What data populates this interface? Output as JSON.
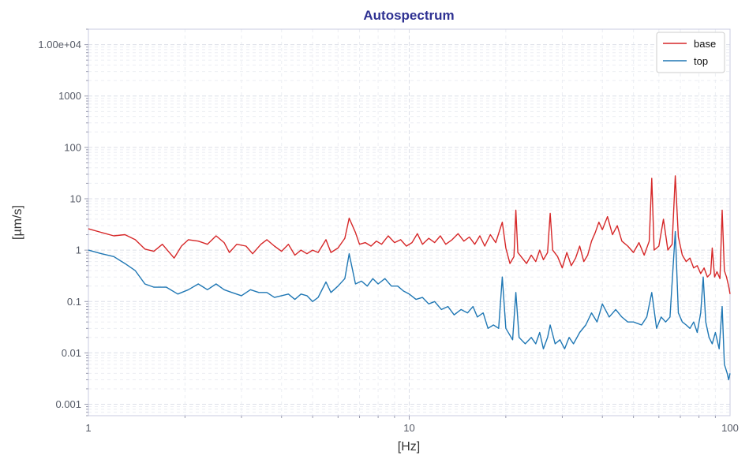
{
  "chart_data": {
    "type": "line",
    "title": "Autospectrum",
    "xlabel": "[Hz]",
    "ylabel": "[µm/s]",
    "xscale": "log",
    "yscale": "log",
    "xlim": [
      1,
      100
    ],
    "ylim": [
      0.0006,
      20000
    ],
    "grid": true,
    "legend_position": "top-right",
    "x_ticks": [
      {
        "value": 1,
        "label": "1"
      },
      {
        "value": 10,
        "label": "10"
      },
      {
        "value": 100,
        "label": "100"
      }
    ],
    "y_ticks": [
      {
        "value": 0.001,
        "label": "0.001"
      },
      {
        "value": 0.01,
        "label": "0.01"
      },
      {
        "value": 0.1,
        "label": "0.1"
      },
      {
        "value": 1,
        "label": "1"
      },
      {
        "value": 10,
        "label": "10"
      },
      {
        "value": 100,
        "label": "100"
      },
      {
        "value": 1000,
        "label": "1000"
      },
      {
        "value": 10000,
        "label": "1.00e+04"
      }
    ],
    "colors": {
      "title": "#2e3192",
      "base": "#d62728",
      "top": "#1f77b4"
    },
    "series": [
      {
        "name": "base",
        "color": "#d62728",
        "points": [
          [
            1.0,
            2.6
          ],
          [
            1.1,
            2.2
          ],
          [
            1.2,
            1.9
          ],
          [
            1.3,
            2.0
          ],
          [
            1.4,
            1.6
          ],
          [
            1.5,
            1.05
          ],
          [
            1.6,
            0.95
          ],
          [
            1.7,
            1.3
          ],
          [
            1.85,
            0.7
          ],
          [
            1.95,
            1.2
          ],
          [
            2.05,
            1.6
          ],
          [
            2.2,
            1.5
          ],
          [
            2.35,
            1.3
          ],
          [
            2.5,
            1.9
          ],
          [
            2.65,
            1.4
          ],
          [
            2.75,
            0.9
          ],
          [
            2.9,
            1.3
          ],
          [
            3.1,
            1.2
          ],
          [
            3.25,
            0.85
          ],
          [
            3.45,
            1.3
          ],
          [
            3.6,
            1.6
          ],
          [
            3.8,
            1.2
          ],
          [
            4.0,
            0.95
          ],
          [
            4.2,
            1.3
          ],
          [
            4.4,
            0.8
          ],
          [
            4.6,
            1.0
          ],
          [
            4.8,
            0.85
          ],
          [
            5.0,
            1.0
          ],
          [
            5.2,
            0.9
          ],
          [
            5.5,
            1.6
          ],
          [
            5.7,
            0.9
          ],
          [
            6.0,
            1.1
          ],
          [
            6.3,
            1.7
          ],
          [
            6.5,
            4.2
          ],
          [
            6.8,
            2.2
          ],
          [
            7.0,
            1.3
          ],
          [
            7.3,
            1.4
          ],
          [
            7.6,
            1.2
          ],
          [
            7.9,
            1.5
          ],
          [
            8.2,
            1.3
          ],
          [
            8.6,
            1.9
          ],
          [
            9.0,
            1.4
          ],
          [
            9.4,
            1.6
          ],
          [
            9.8,
            1.2
          ],
          [
            10.2,
            1.4
          ],
          [
            10.6,
            2.1
          ],
          [
            11.0,
            1.3
          ],
          [
            11.5,
            1.7
          ],
          [
            12.0,
            1.4
          ],
          [
            12.5,
            1.9
          ],
          [
            13.0,
            1.3
          ],
          [
            13.6,
            1.6
          ],
          [
            14.2,
            2.1
          ],
          [
            14.8,
            1.5
          ],
          [
            15.4,
            1.8
          ],
          [
            16.0,
            1.3
          ],
          [
            16.6,
            1.9
          ],
          [
            17.2,
            1.2
          ],
          [
            17.9,
            2.0
          ],
          [
            18.6,
            1.4
          ],
          [
            19.5,
            3.5
          ],
          [
            20.0,
            1.1
          ],
          [
            20.6,
            0.55
          ],
          [
            21.2,
            0.75
          ],
          [
            21.5,
            6.0
          ],
          [
            21.8,
            0.9
          ],
          [
            22.5,
            0.7
          ],
          [
            23.2,
            0.55
          ],
          [
            24.0,
            0.8
          ],
          [
            24.8,
            0.6
          ],
          [
            25.5,
            1.0
          ],
          [
            26.2,
            0.65
          ],
          [
            27.0,
            0.9
          ],
          [
            27.5,
            5.2
          ],
          [
            28.0,
            1.0
          ],
          [
            29.0,
            0.75
          ],
          [
            30.0,
            0.45
          ],
          [
            31.0,
            0.9
          ],
          [
            32.0,
            0.5
          ],
          [
            33.0,
            0.7
          ],
          [
            34.0,
            1.2
          ],
          [
            35.0,
            0.6
          ],
          [
            36.0,
            0.8
          ],
          [
            37.0,
            1.5
          ],
          [
            38.0,
            2.2
          ],
          [
            39.0,
            3.5
          ],
          [
            40.0,
            2.5
          ],
          [
            41.5,
            4.5
          ],
          [
            43.0,
            2.0
          ],
          [
            44.5,
            3.0
          ],
          [
            46.0,
            1.5
          ],
          [
            48.0,
            1.2
          ],
          [
            50.0,
            0.9
          ],
          [
            52.0,
            1.4
          ],
          [
            54.0,
            0.8
          ],
          [
            56.0,
            1.5
          ],
          [
            57.0,
            25.0
          ],
          [
            58.0,
            1.0
          ],
          [
            60.0,
            1.2
          ],
          [
            62.0,
            4.0
          ],
          [
            64.0,
            1.0
          ],
          [
            66.0,
            1.3
          ],
          [
            67.5,
            28.0
          ],
          [
            69.0,
            1.8
          ],
          [
            71.0,
            0.8
          ],
          [
            73.0,
            0.6
          ],
          [
            75.0,
            0.7
          ],
          [
            77.0,
            0.45
          ],
          [
            79.0,
            0.5
          ],
          [
            81.0,
            0.35
          ],
          [
            83.0,
            0.45
          ],
          [
            85.0,
            0.3
          ],
          [
            87.0,
            0.35
          ],
          [
            88.0,
            1.1
          ],
          [
            89.5,
            0.3
          ],
          [
            91.0,
            0.38
          ],
          [
            93.0,
            0.28
          ],
          [
            94.5,
            6.0
          ],
          [
            96.0,
            0.4
          ],
          [
            97.5,
            0.3
          ],
          [
            99.0,
            0.2
          ],
          [
            100.0,
            0.14
          ]
        ]
      },
      {
        "name": "top",
        "color": "#1f77b4",
        "points": [
          [
            1.0,
            1.0
          ],
          [
            1.1,
            0.85
          ],
          [
            1.2,
            0.75
          ],
          [
            1.3,
            0.55
          ],
          [
            1.4,
            0.4
          ],
          [
            1.5,
            0.22
          ],
          [
            1.6,
            0.19
          ],
          [
            1.75,
            0.19
          ],
          [
            1.9,
            0.14
          ],
          [
            2.05,
            0.17
          ],
          [
            2.2,
            0.22
          ],
          [
            2.35,
            0.17
          ],
          [
            2.5,
            0.22
          ],
          [
            2.65,
            0.17
          ],
          [
            2.8,
            0.15
          ],
          [
            3.0,
            0.13
          ],
          [
            3.2,
            0.17
          ],
          [
            3.4,
            0.15
          ],
          [
            3.6,
            0.15
          ],
          [
            3.8,
            0.12
          ],
          [
            4.0,
            0.13
          ],
          [
            4.2,
            0.14
          ],
          [
            4.4,
            0.11
          ],
          [
            4.6,
            0.14
          ],
          [
            4.8,
            0.13
          ],
          [
            5.0,
            0.1
          ],
          [
            5.2,
            0.12
          ],
          [
            5.5,
            0.24
          ],
          [
            5.7,
            0.15
          ],
          [
            6.0,
            0.2
          ],
          [
            6.3,
            0.28
          ],
          [
            6.5,
            0.85
          ],
          [
            6.8,
            0.22
          ],
          [
            7.1,
            0.25
          ],
          [
            7.4,
            0.2
          ],
          [
            7.7,
            0.28
          ],
          [
            8.0,
            0.22
          ],
          [
            8.4,
            0.28
          ],
          [
            8.8,
            0.2
          ],
          [
            9.2,
            0.2
          ],
          [
            9.6,
            0.16
          ],
          [
            10.0,
            0.14
          ],
          [
            10.5,
            0.11
          ],
          [
            11.0,
            0.12
          ],
          [
            11.5,
            0.09
          ],
          [
            12.0,
            0.1
          ],
          [
            12.6,
            0.07
          ],
          [
            13.2,
            0.08
          ],
          [
            13.8,
            0.055
          ],
          [
            14.5,
            0.07
          ],
          [
            15.2,
            0.06
          ],
          [
            15.8,
            0.08
          ],
          [
            16.3,
            0.05
          ],
          [
            17.0,
            0.06
          ],
          [
            17.6,
            0.03
          ],
          [
            18.3,
            0.035
          ],
          [
            19.0,
            0.03
          ],
          [
            19.5,
            0.3
          ],
          [
            20.0,
            0.03
          ],
          [
            21.0,
            0.018
          ],
          [
            21.5,
            0.15
          ],
          [
            22.0,
            0.02
          ],
          [
            23.0,
            0.015
          ],
          [
            24.0,
            0.02
          ],
          [
            24.8,
            0.015
          ],
          [
            25.5,
            0.025
          ],
          [
            26.2,
            0.012
          ],
          [
            27.0,
            0.02
          ],
          [
            27.5,
            0.035
          ],
          [
            28.5,
            0.015
          ],
          [
            29.5,
            0.018
          ],
          [
            30.5,
            0.012
          ],
          [
            31.5,
            0.02
          ],
          [
            32.5,
            0.015
          ],
          [
            34.0,
            0.025
          ],
          [
            35.5,
            0.035
          ],
          [
            37.0,
            0.06
          ],
          [
            38.5,
            0.04
          ],
          [
            40.0,
            0.09
          ],
          [
            42.0,
            0.05
          ],
          [
            44.0,
            0.07
          ],
          [
            46.0,
            0.05
          ],
          [
            48.0,
            0.04
          ],
          [
            50.0,
            0.04
          ],
          [
            53.0,
            0.035
          ],
          [
            55.0,
            0.05
          ],
          [
            57.0,
            0.15
          ],
          [
            59.0,
            0.03
          ],
          [
            61.0,
            0.05
          ],
          [
            63.0,
            0.04
          ],
          [
            65.0,
            0.05
          ],
          [
            67.5,
            2.3
          ],
          [
            69.0,
            0.06
          ],
          [
            71.0,
            0.04
          ],
          [
            73.0,
            0.035
          ],
          [
            75.0,
            0.03
          ],
          [
            77.0,
            0.04
          ],
          [
            79.0,
            0.025
          ],
          [
            81.0,
            0.06
          ],
          [
            82.5,
            0.3
          ],
          [
            84.0,
            0.04
          ],
          [
            86.0,
            0.02
          ],
          [
            88.0,
            0.015
          ],
          [
            90.0,
            0.025
          ],
          [
            92.5,
            0.012
          ],
          [
            94.5,
            0.08
          ],
          [
            96.0,
            0.006
          ],
          [
            98.0,
            0.004
          ],
          [
            99.0,
            0.003
          ],
          [
            100.0,
            0.004
          ]
        ]
      }
    ]
  }
}
